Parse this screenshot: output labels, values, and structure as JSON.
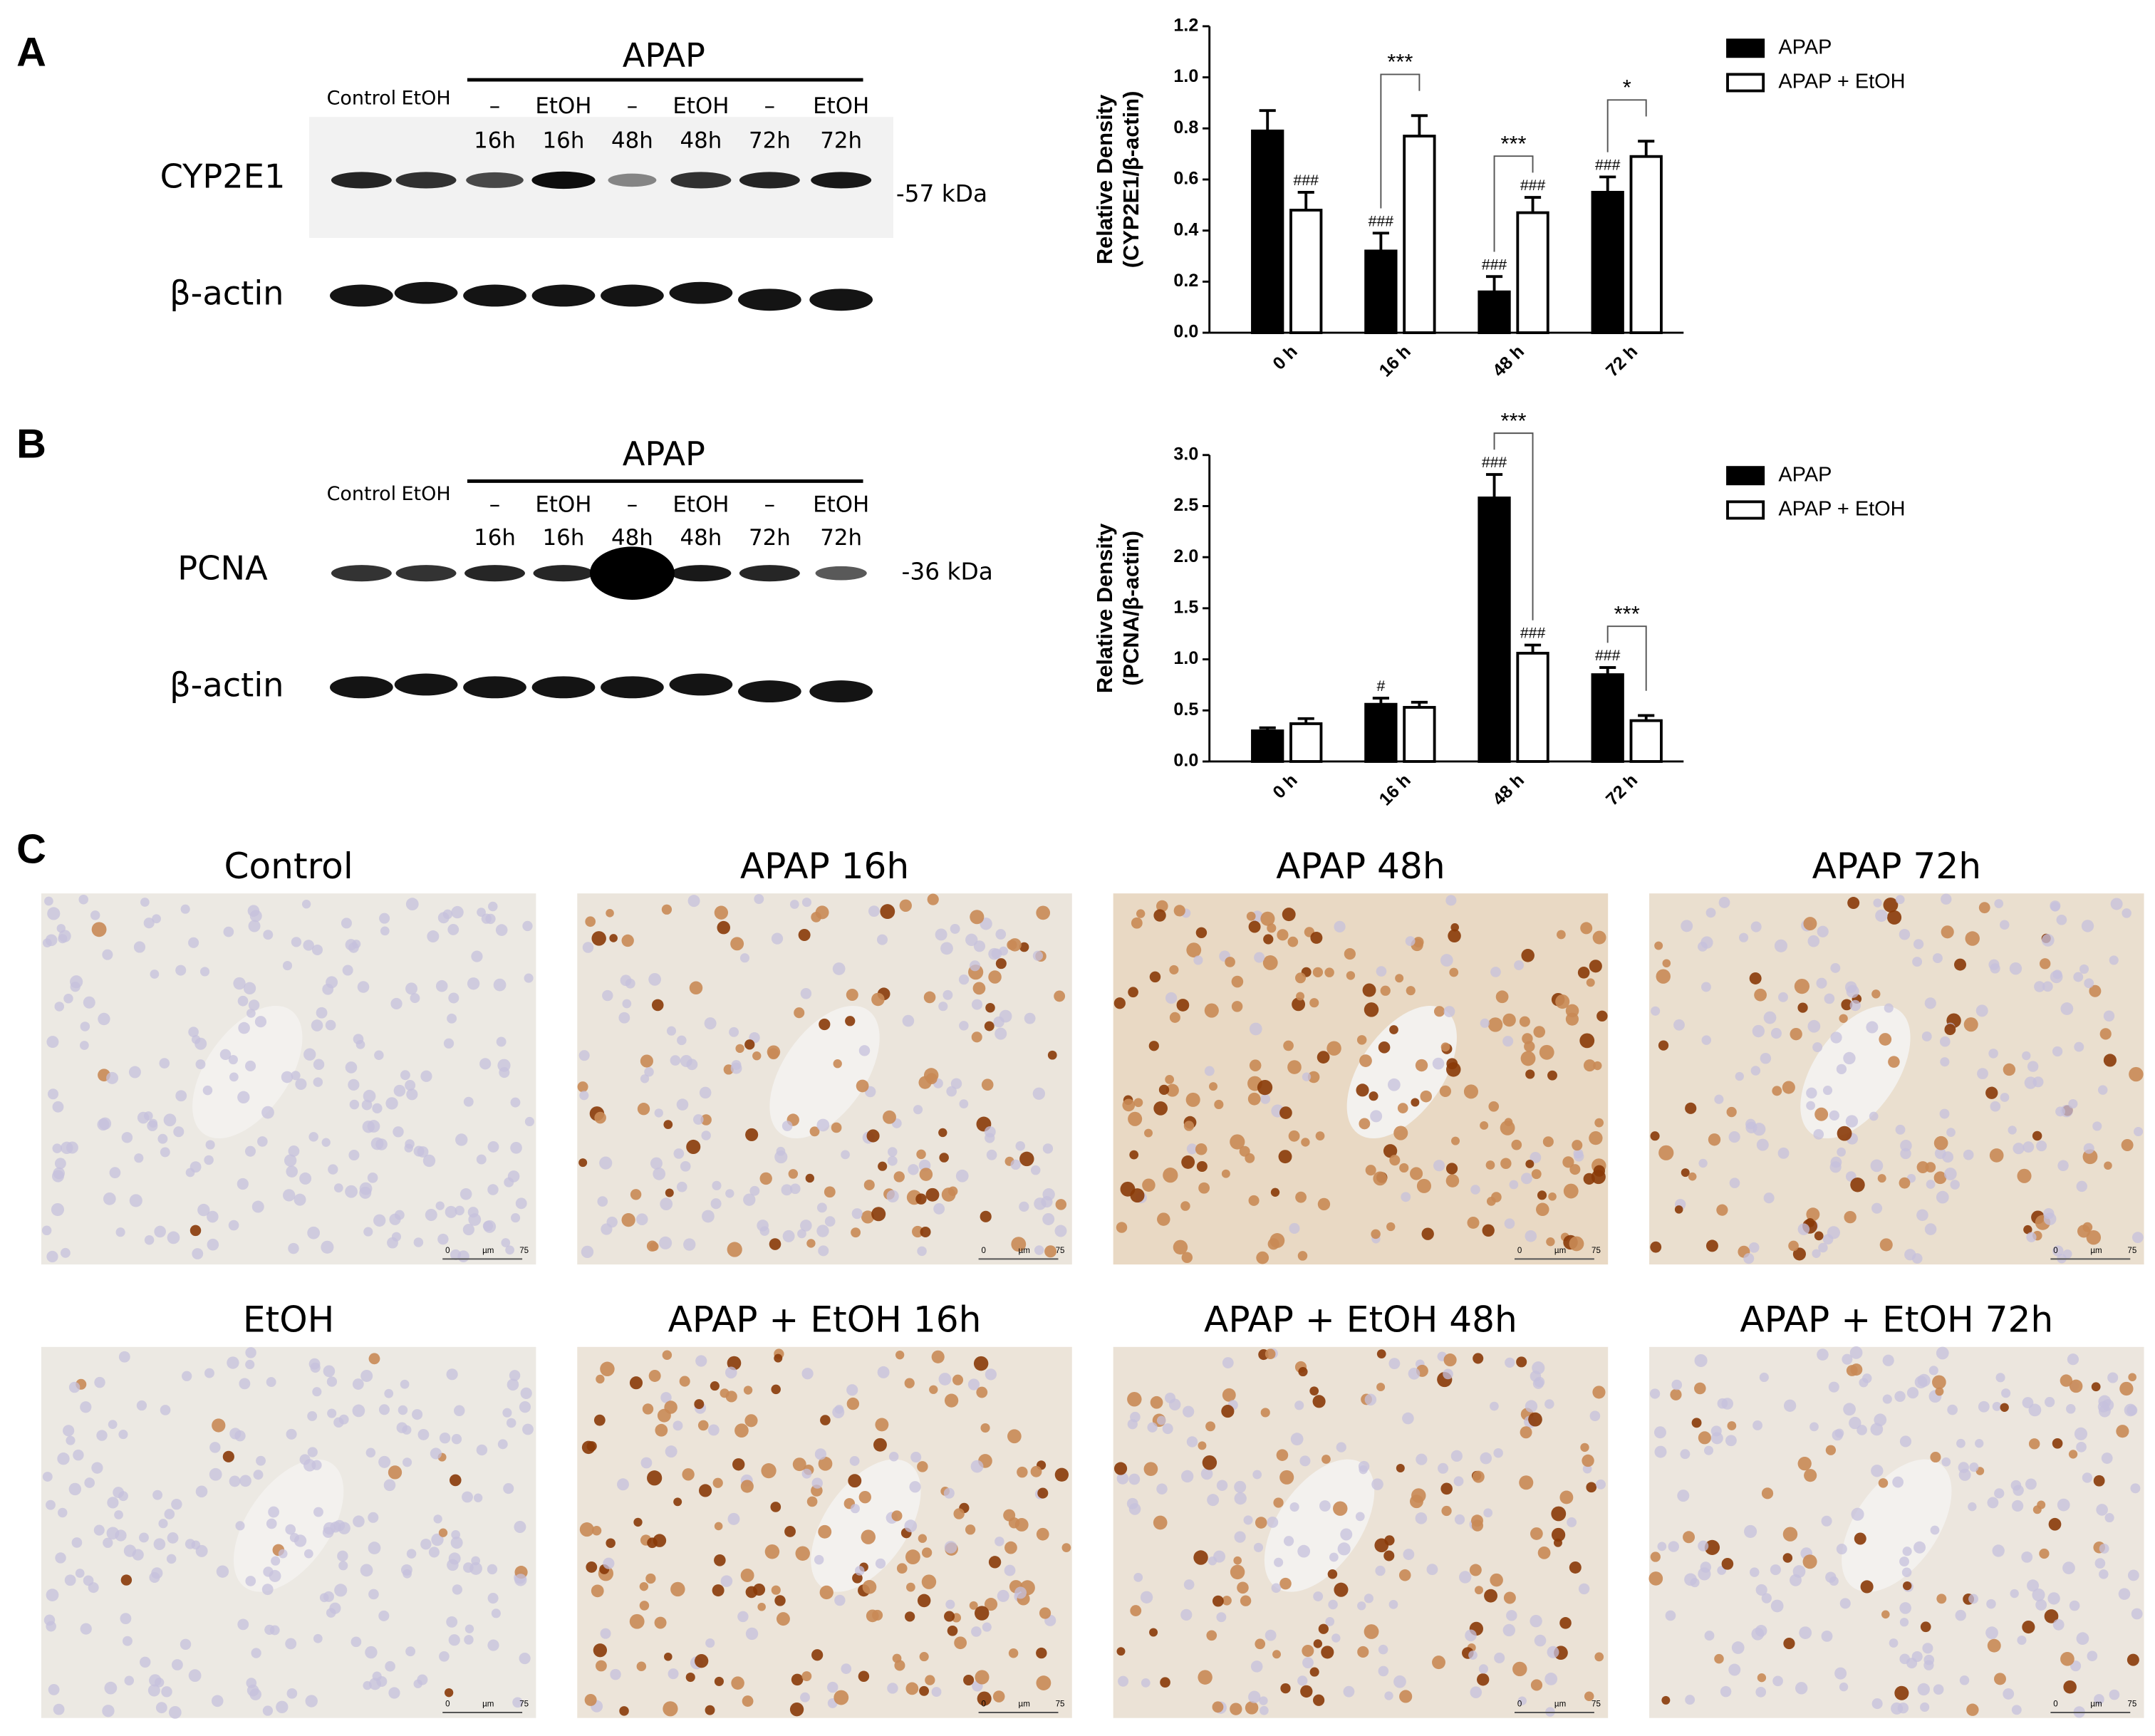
{
  "panel_labels": [
    "A",
    "B",
    "C"
  ],
  "blots": [
    {
      "header": "APAP",
      "controls": [
        "Control",
        "EtOH"
      ],
      "treatment": [
        "–",
        "EtOH",
        "–",
        "EtOH",
        "–",
        "EtOH"
      ],
      "time": [
        "16h",
        "16h",
        "48h",
        "48h",
        "72h",
        "72h"
      ],
      "protein": "CYP2E1",
      "size": "-57 kDa",
      "loading": "β-actin"
    },
    {
      "header": "APAP",
      "controls": [
        "Control",
        "EtOH"
      ],
      "treatment": [
        "–",
        "EtOH",
        "–",
        "EtOH",
        "–",
        "EtOH"
      ],
      "time": [
        "16h",
        "16h",
        "48h",
        "48h",
        "72h",
        "72h"
      ],
      "protein": "PCNA",
      "size": "-36 kDa",
      "loading": "β-actin"
    }
  ],
  "chart_data": [
    {
      "type": "bar",
      "ylabel": [
        "Relative Density",
        "(CYP2E1/β-actin)"
      ],
      "categories": [
        "0 h",
        "16 h",
        "48 h",
        "72 h"
      ],
      "series": [
        {
          "name": "APAP",
          "color": "#000000",
          "values": [
            0.79,
            0.32,
            0.16,
            0.55
          ],
          "errors": [
            0.08,
            0.07,
            0.06,
            0.06
          ],
          "sig_labels": [
            null,
            "###",
            "###",
            "###"
          ]
        },
        {
          "name": "APAP + EtOH",
          "color": "#ffffff",
          "values": [
            0.48,
            0.77,
            0.47,
            0.69
          ],
          "errors": [
            0.07,
            0.08,
            0.06,
            0.06
          ],
          "sig_labels": [
            "###",
            null,
            "###",
            null
          ]
        }
      ],
      "comparisons": [
        null,
        "***",
        "***",
        "*"
      ],
      "ylim": [
        0,
        1.2
      ],
      "yticks": [
        {
          "value": 0,
          "label": "0.0"
        },
        0.2,
        0.4,
        0.6,
        0.8,
        {
          "value": 1,
          "label": "1.0"
        },
        1.2
      ],
      "legend": "right"
    },
    {
      "type": "bar",
      "ylabel": [
        "Relative Density",
        "(PCNA/β-actin)"
      ],
      "categories": [
        "0 h",
        "16 h",
        "48 h",
        "72 h"
      ],
      "series": [
        {
          "name": "APAP",
          "color": "#000000",
          "values": [
            0.3,
            0.56,
            2.58,
            0.85
          ],
          "errors": [
            0.03,
            0.06,
            0.23,
            0.07
          ],
          "sig_labels": [
            null,
            "#",
            "###",
            "###"
          ]
        },
        {
          "name": "APAP + EtOH",
          "color": "#ffffff",
          "values": [
            0.37,
            0.53,
            1.06,
            0.4
          ],
          "errors": [
            0.05,
            0.05,
            0.08,
            0.05
          ],
          "sig_labels": [
            null,
            null,
            "###",
            null
          ]
        }
      ],
      "comparisons": [
        null,
        null,
        "***",
        "***"
      ],
      "ylim": [
        0,
        3
      ],
      "yticks": [
        {
          "value": 0,
          "label": "0.0"
        },
        0.5,
        {
          "value": 1,
          "label": "1.0"
        },
        1.5,
        {
          "value": 2,
          "label": "2.0"
        },
        2.5,
        {
          "value": 3,
          "label": "3.0"
        }
      ],
      "legend": "right"
    }
  ],
  "histology": {
    "titles": [
      "Control",
      "APAP 16h",
      "APAP 48h",
      "APAP 72h",
      "EtOH",
      "APAP + EtOH 16h",
      "APAP + EtOH 48h",
      "APAP + EtOH 72h"
    ],
    "scale_bar": [
      "0",
      "µm",
      "75"
    ]
  }
}
